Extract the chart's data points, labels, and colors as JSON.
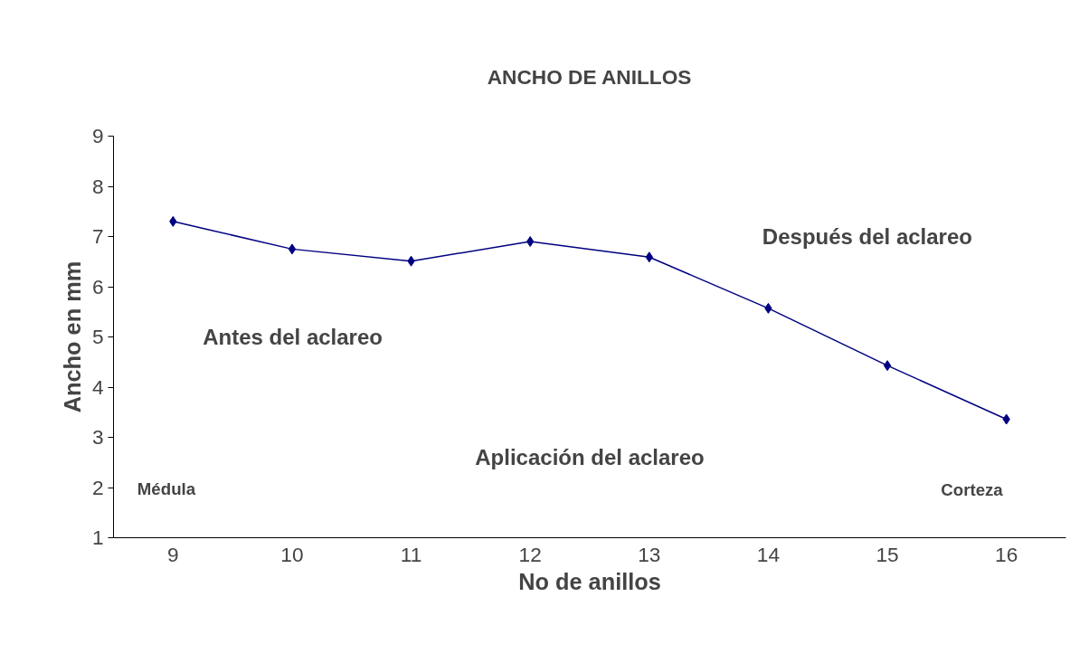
{
  "chart_data": {
    "type": "line",
    "title": "ANCHO DE ANILLOS",
    "xlabel": "No de anillos",
    "ylabel": "Ancho en mm",
    "categories": [
      "9",
      "10",
      "11",
      "12",
      "13",
      "14",
      "15",
      "16"
    ],
    "series": [
      {
        "color": "#000080",
        "values": [
          7.3,
          6.75,
          6.51,
          6.9,
          6.59,
          5.57,
          4.43,
          3.36
        ]
      }
    ],
    "ylim": [
      1,
      9
    ],
    "yticks": [
      1,
      2,
      3,
      4,
      5,
      6,
      7,
      8,
      9
    ],
    "grid": false,
    "marker": "diamond",
    "line_style": "solid",
    "annotations": [
      "Antes del aclareo",
      "Después del aclareo",
      "Aplicación del aclareo",
      "Médula",
      "Corteza"
    ]
  }
}
